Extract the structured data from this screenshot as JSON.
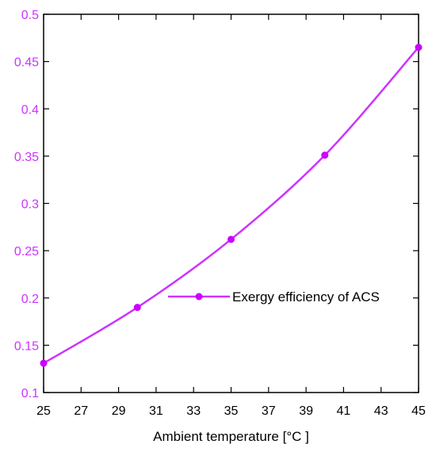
{
  "chart_data": {
    "type": "line",
    "title": "",
    "xlabel": "Ambient temperature [°C ]",
    "ylabel": "",
    "xlim": [
      25,
      45
    ],
    "ylim": [
      0.1,
      0.5
    ],
    "x_ticks": [
      25,
      27,
      29,
      31,
      33,
      35,
      37,
      39,
      41,
      43,
      45
    ],
    "y_ticks": [
      0.1,
      0.15,
      0.2,
      0.25,
      0.3,
      0.35,
      0.4,
      0.45,
      0.5
    ],
    "y_tick_labels": [
      "0.1",
      "0.15",
      "0.2",
      "0.25",
      "0.3",
      "0.35",
      "0.4",
      "0.45",
      "0.5"
    ],
    "grid": false,
    "legend_position": "center-right",
    "x_tick_color": "#000000",
    "y_tick_color": "#cc33ff",
    "series": [
      {
        "name": "Exergy efficiency of ACS",
        "color": "#cc33ff",
        "marker_color": "#cc00ff",
        "x": [
          25,
          30,
          35,
          40,
          45
        ],
        "y": [
          0.131,
          0.19,
          0.262,
          0.351,
          0.465
        ]
      }
    ]
  }
}
